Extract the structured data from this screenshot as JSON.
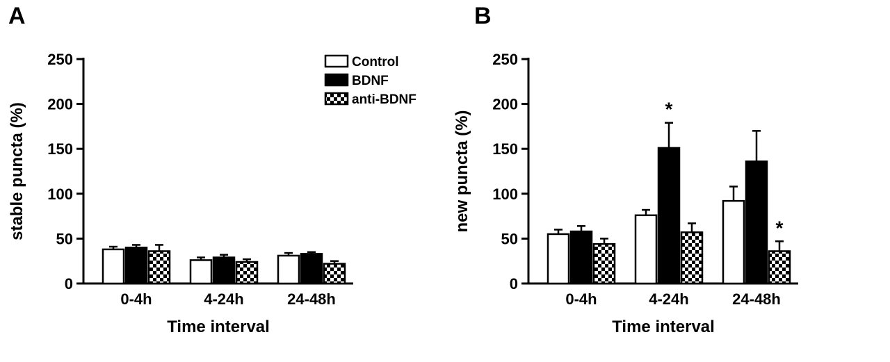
{
  "figure": {
    "panel_a_label": "A",
    "panel_b_label": "B"
  },
  "colors": {
    "bar_outline": "#000000",
    "background": "#ffffff",
    "control_fill": "#ffffff",
    "bdnf_fill": "#000000"
  },
  "legend": {
    "position": "top-right-of-panel-A",
    "entries": [
      {
        "label": "Control",
        "fill": "white"
      },
      {
        "label": "BDNF",
        "fill": "black"
      },
      {
        "label": "anti-BDNF",
        "fill": "checker"
      }
    ]
  },
  "chart_data": [
    {
      "type": "bar",
      "panel_label": "A",
      "title": "",
      "xlabel": "Time interval",
      "ylabel": "stable puncta (%)",
      "ylim": [
        0,
        250
      ],
      "yticks": [
        0,
        50,
        100,
        150,
        200,
        250
      ],
      "grid": false,
      "categories": [
        "0-4h",
        "4-24h",
        "24-48h"
      ],
      "series": [
        {
          "name": "Control",
          "fill": "white",
          "values": [
            38,
            26,
            31
          ],
          "errors": [
            3,
            3,
            3
          ]
        },
        {
          "name": "BDNF",
          "fill": "black",
          "values": [
            40,
            29,
            33
          ],
          "errors": [
            3,
            3,
            2
          ]
        },
        {
          "name": "anti-BDNF",
          "fill": "checker",
          "values": [
            36,
            24,
            22
          ],
          "errors": [
            7,
            3,
            3
          ]
        }
      ],
      "annotations": []
    },
    {
      "type": "bar",
      "panel_label": "B",
      "title": "",
      "xlabel": "Time interval",
      "ylabel": "new puncta (%)",
      "ylim": [
        0,
        250
      ],
      "yticks": [
        0,
        50,
        100,
        150,
        200,
        250
      ],
      "grid": false,
      "categories": [
        "0-4h",
        "4-24h",
        "24-48h"
      ],
      "series": [
        {
          "name": "Control",
          "fill": "white",
          "values": [
            55,
            76,
            92
          ],
          "errors": [
            5,
            6,
            16
          ]
        },
        {
          "name": "BDNF",
          "fill": "black",
          "values": [
            58,
            151,
            136
          ],
          "errors": [
            6,
            28,
            34
          ]
        },
        {
          "name": "anti-BDNF",
          "fill": "checker",
          "values": [
            44,
            57,
            36
          ],
          "errors": [
            6,
            10,
            11
          ]
        }
      ],
      "annotations": [
        {
          "series": "BDNF",
          "category": "4-24h",
          "text": "*"
        },
        {
          "series": "anti-BDNF",
          "category": "24-48h",
          "text": "*"
        }
      ]
    }
  ]
}
